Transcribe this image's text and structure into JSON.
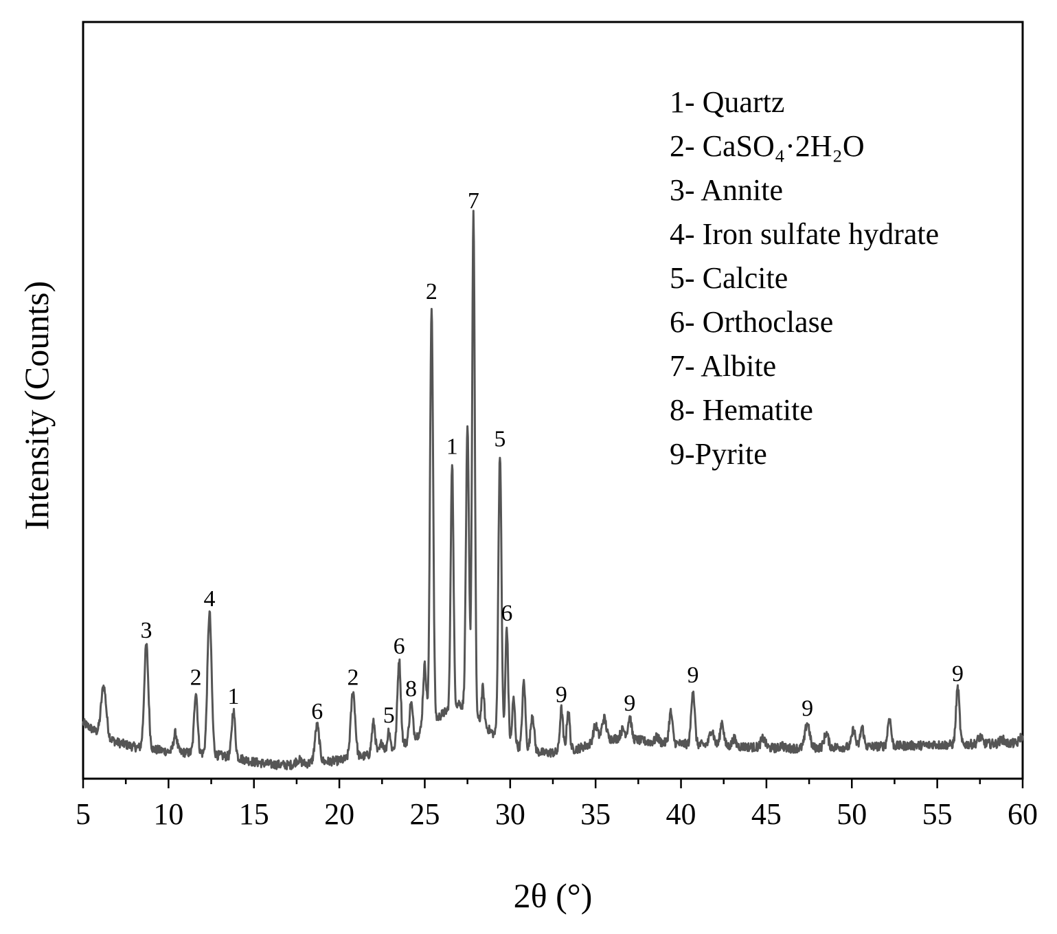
{
  "chart_data": {
    "type": "line",
    "title": "",
    "xlabel": "2θ (°)",
    "ylabel": "Intensity (Counts)",
    "xlim": [
      5,
      60
    ],
    "ylim": [
      0,
      100
    ],
    "x_ticks": [
      5,
      10,
      15,
      20,
      25,
      30,
      35,
      40,
      45,
      50,
      55,
      60
    ],
    "y_ticks_shown": false,
    "grid": false,
    "line_color": "#555555",
    "legend_placement": "top-right",
    "legend": [
      "1- Quartz",
      "2- CaSO₄·2H₂O",
      "3- Annite",
      "4- Iron sulfate hydrate",
      "5- Calcite",
      "6- Orthoclase",
      "7- Albite",
      "8- Hematite",
      "9-Pyrite"
    ],
    "baseline": [
      [
        5,
        7.4
      ],
      [
        6,
        5.8
      ],
      [
        7,
        4.8
      ],
      [
        8,
        4.2
      ],
      [
        10,
        3.6
      ],
      [
        12,
        3.3
      ],
      [
        14,
        2.8
      ],
      [
        15,
        2.2
      ],
      [
        16,
        1.9
      ],
      [
        17,
        1.8
      ],
      [
        18,
        2.0
      ],
      [
        20,
        2.4
      ],
      [
        21,
        2.8
      ],
      [
        22,
        3.2
      ],
      [
        23,
        3.8
      ],
      [
        24,
        4.8
      ],
      [
        25,
        6.5
      ],
      [
        26,
        8.5
      ],
      [
        27,
        10.0
      ],
      [
        28,
        8.0
      ],
      [
        29,
        6.0
      ],
      [
        30,
        4.6
      ],
      [
        31,
        3.8
      ],
      [
        32,
        3.4
      ],
      [
        33,
        3.5
      ],
      [
        34,
        4.0
      ],
      [
        35,
        4.8
      ],
      [
        36,
        5.3
      ],
      [
        37,
        5.3
      ],
      [
        38,
        4.9
      ],
      [
        40,
        4.6
      ],
      [
        42,
        4.4
      ],
      [
        44,
        4.2
      ],
      [
        46,
        4.0
      ],
      [
        48,
        4.1
      ],
      [
        50,
        4.2
      ],
      [
        52,
        4.3
      ],
      [
        54,
        4.4
      ],
      [
        56,
        4.5
      ],
      [
        58,
        4.6
      ],
      [
        60,
        4.7
      ]
    ],
    "peaks": [
      {
        "x": 6.2,
        "y": 12.2,
        "w": 0.15
      },
      {
        "x": 8.7,
        "y": 17.7,
        "w": 0.12,
        "label": "3"
      },
      {
        "x": 10.4,
        "y": 6.0,
        "w": 0.1
      },
      {
        "x": 11.6,
        "y": 11.5,
        "w": 0.1,
        "label": "2"
      },
      {
        "x": 12.4,
        "y": 21.9,
        "w": 0.12,
        "label": "4"
      },
      {
        "x": 13.8,
        "y": 9.0,
        "w": 0.1,
        "label": "1"
      },
      {
        "x": 17.6,
        "y": 2.5,
        "w": 0.15
      },
      {
        "x": 18.7,
        "y": 7.0,
        "w": 0.13,
        "label": "6"
      },
      {
        "x": 20.8,
        "y": 11.5,
        "w": 0.13,
        "label": "2"
      },
      {
        "x": 22.0,
        "y": 7.4,
        "w": 0.1
      },
      {
        "x": 22.5,
        "y": 4.8,
        "w": 0.1
      },
      {
        "x": 22.9,
        "y": 6.5,
        "w": 0.08,
        "label": "5"
      },
      {
        "x": 23.5,
        "y": 15.6,
        "w": 0.1,
        "label": "6"
      },
      {
        "x": 24.2,
        "y": 10.0,
        "w": 0.1,
        "label": "8"
      },
      {
        "x": 25.0,
        "y": 15.0,
        "w": 0.1
      },
      {
        "x": 25.4,
        "y": 62.5,
        "w": 0.09,
        "label": "2"
      },
      {
        "x": 26.6,
        "y": 42.0,
        "w": 0.08,
        "label": "1"
      },
      {
        "x": 27.5,
        "y": 46.0,
        "w": 0.09
      },
      {
        "x": 27.85,
        "y": 74.5,
        "w": 0.08,
        "label": "7"
      },
      {
        "x": 28.4,
        "y": 12.0,
        "w": 0.08
      },
      {
        "x": 29.4,
        "y": 43.0,
        "w": 0.09,
        "label": "5"
      },
      {
        "x": 29.8,
        "y": 20.0,
        "w": 0.08,
        "label": "6"
      },
      {
        "x": 30.2,
        "y": 10.5,
        "w": 0.08
      },
      {
        "x": 30.8,
        "y": 12.8,
        "w": 0.09
      },
      {
        "x": 31.3,
        "y": 8.5,
        "w": 0.1
      },
      {
        "x": 33.0,
        "y": 9.2,
        "w": 0.09,
        "label": "9"
      },
      {
        "x": 33.4,
        "y": 9.0,
        "w": 0.09
      },
      {
        "x": 35.0,
        "y": 7.0,
        "w": 0.13
      },
      {
        "x": 35.5,
        "y": 8.0,
        "w": 0.13
      },
      {
        "x": 36.6,
        "y": 6.5,
        "w": 0.13
      },
      {
        "x": 37.0,
        "y": 8.1,
        "w": 0.1,
        "label": "9"
      },
      {
        "x": 38.6,
        "y": 5.5,
        "w": 0.1
      },
      {
        "x": 39.4,
        "y": 8.8,
        "w": 0.1
      },
      {
        "x": 40.7,
        "y": 11.8,
        "w": 0.1,
        "label": "9"
      },
      {
        "x": 41.8,
        "y": 6.5,
        "w": 0.12
      },
      {
        "x": 42.4,
        "y": 7.5,
        "w": 0.1
      },
      {
        "x": 43.1,
        "y": 5.3,
        "w": 0.1
      },
      {
        "x": 44.8,
        "y": 5.3,
        "w": 0.13
      },
      {
        "x": 45.9,
        "y": 4.5,
        "w": 0.1
      },
      {
        "x": 47.4,
        "y": 7.4,
        "w": 0.13,
        "label": "9"
      },
      {
        "x": 48.5,
        "y": 6.0,
        "w": 0.12
      },
      {
        "x": 50.1,
        "y": 6.5,
        "w": 0.1
      },
      {
        "x": 50.6,
        "y": 6.8,
        "w": 0.1
      },
      {
        "x": 52.2,
        "y": 8.0,
        "w": 0.1
      },
      {
        "x": 53.0,
        "y": 4.2,
        "w": 0.1
      },
      {
        "x": 54.8,
        "y": 4.6,
        "w": 0.1
      },
      {
        "x": 56.2,
        "y": 12.0,
        "w": 0.1,
        "label": "9"
      },
      {
        "x": 57.5,
        "y": 5.5,
        "w": 0.13
      },
      {
        "x": 58.8,
        "y": 5.2,
        "w": 0.13
      },
      {
        "x": 59.9,
        "y": 5.5,
        "w": 0.1
      }
    ]
  }
}
